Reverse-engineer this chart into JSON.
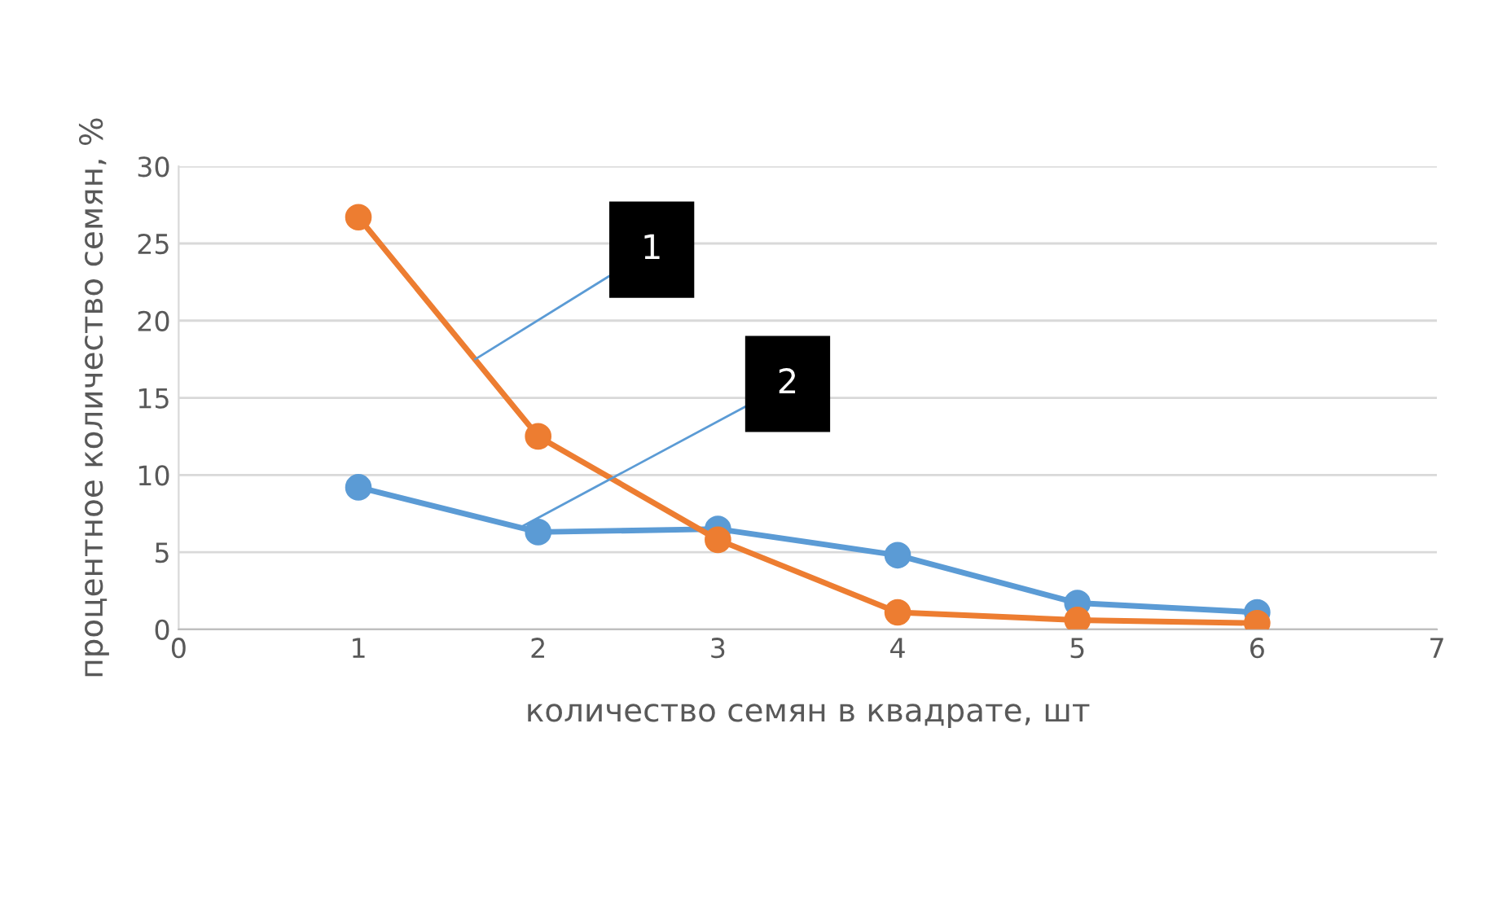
{
  "chart_data": {
    "type": "line",
    "xlabel": "количество семян в квадрате, шт",
    "ylabel": "процентное количество семян, %",
    "x": [
      1,
      2,
      3,
      4,
      5,
      6
    ],
    "series": [
      {
        "color": "#5b9bd5",
        "values": [
          9.2,
          6.3,
          6.5,
          4.8,
          1.7,
          1.1
        ]
      },
      {
        "color": "#ed7d31",
        "values": [
          26.7,
          12.5,
          5.8,
          1.1,
          0.6,
          0.4
        ]
      }
    ],
    "xlim": [
      0,
      7
    ],
    "xticks": [
      0,
      1,
      2,
      3,
      4,
      5,
      6,
      7
    ],
    "ylim": [
      0,
      30
    ],
    "yticks": [
      0,
      5,
      10,
      15,
      20,
      25,
      30
    ],
    "grid": "y",
    "marker": "circle",
    "line_style": "solid",
    "annotations": [
      {
        "text": "1",
        "x": 1.65,
        "y": 17.5
      },
      {
        "text": "2",
        "x": 1.9,
        "y": 6.6
      }
    ]
  }
}
